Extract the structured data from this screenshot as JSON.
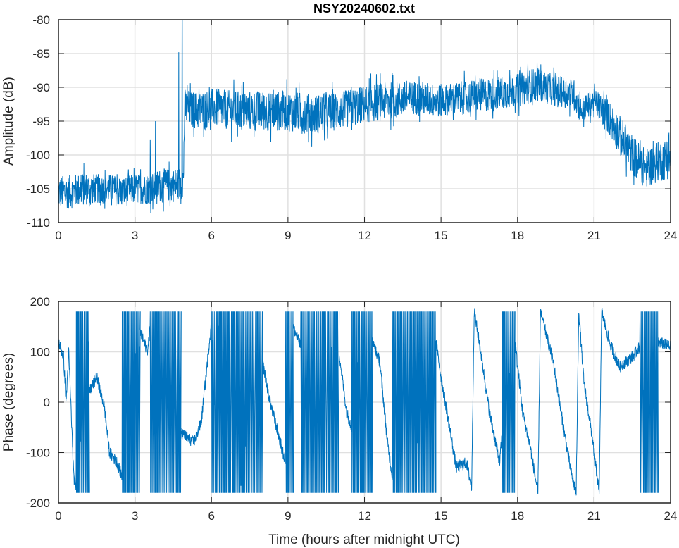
{
  "chart_data": [
    {
      "type": "line",
      "title": "NSY20240602.txt",
      "xlabel": "",
      "ylabel": "Amplitude (dB)",
      "xlim": [
        0,
        24
      ],
      "ylim": [
        -110,
        -80
      ],
      "xticks": [
        "0",
        "3",
        "6",
        "9",
        "12",
        "15",
        "18",
        "21",
        "24"
      ],
      "yticks": [
        "-110",
        "-105",
        "-100",
        "-95",
        "-90",
        "-85",
        "-80"
      ],
      "grid": true,
      "color": "#0072BD",
      "series": [
        {
          "name": "Amplitude",
          "points_t_mean_spread": [
            [
              0,
              -105.5,
              2.5
            ],
            [
              0.5,
              -105.5,
              2.5
            ],
            [
              1,
              -105,
              2.5
            ],
            [
              1.5,
              -105,
              2.2
            ],
            [
              2,
              -105,
              2.2
            ],
            [
              2.5,
              -105.5,
              2.3
            ],
            [
              3,
              -105,
              2.3
            ],
            [
              3.5,
              -105,
              2.3
            ],
            [
              4,
              -104.5,
              2.5
            ],
            [
              4.5,
              -104.5,
              2.5
            ],
            [
              4.9,
              -104,
              2.5
            ],
            [
              4.95,
              -93,
              2.8
            ],
            [
              5.5,
              -93.5,
              2.8
            ],
            [
              6,
              -93,
              2.8
            ],
            [
              7,
              -93.5,
              3
            ],
            [
              8,
              -93.5,
              3
            ],
            [
              9,
              -93.5,
              3
            ],
            [
              10,
              -94,
              3
            ],
            [
              11,
              -93.5,
              2.8
            ],
            [
              12,
              -92.5,
              2.8
            ],
            [
              13,
              -92,
              2.8
            ],
            [
              14,
              -91.5,
              2.5
            ],
            [
              15,
              -92,
              2.5
            ],
            [
              16,
              -91.5,
              2.5
            ],
            [
              17,
              -91,
              2.5
            ],
            [
              18,
              -90.5,
              2.5
            ],
            [
              18.7,
              -89.5,
              2.5
            ],
            [
              19.5,
              -90.5,
              2.3
            ],
            [
              20.2,
              -91,
              2.3
            ],
            [
              20.5,
              -93.5,
              2
            ],
            [
              21,
              -92,
              1.8
            ],
            [
              21.5,
              -94,
              2.5
            ],
            [
              22,
              -97,
              3
            ],
            [
              22.5,
              -100,
              3
            ],
            [
              23,
              -102,
              3
            ],
            [
              23.5,
              -101,
              3
            ],
            [
              24,
              -100.5,
              3
            ]
          ],
          "spikes": [
            [
              3.8,
              -95
            ],
            [
              3.6,
              -97.8
            ],
            [
              4.72,
              -84.8
            ],
            [
              4.85,
              -80
            ]
          ]
        }
      ]
    },
    {
      "type": "line",
      "title": "",
      "xlabel": "Time (hours after midnight UTC)",
      "ylabel": "Phase (degrees)",
      "xlim": [
        0,
        24
      ],
      "ylim": [
        -200,
        200
      ],
      "xticks": [
        "0",
        "3",
        "6",
        "9",
        "12",
        "15",
        "18",
        "21",
        "24"
      ],
      "yticks": [
        "-200",
        "-100",
        "0",
        "100",
        "200"
      ],
      "grid": true,
      "color": "#0072BD",
      "series": [
        {
          "name": "Phase",
          "points": [
            [
              0,
              120
            ],
            [
              0.2,
              90
            ],
            [
              0.3,
              0
            ],
            [
              0.4,
              100
            ],
            [
              0.5,
              -20
            ],
            [
              0.6,
              -150
            ],
            [
              0.7,
              -170
            ],
            [
              1.2,
              20
            ],
            [
              1.5,
              50
            ],
            [
              1.8,
              -10
            ],
            [
              2.0,
              -100
            ],
            [
              2.3,
              -120
            ],
            [
              2.5,
              -150
            ],
            [
              3.2,
              140
            ],
            [
              3.5,
              100
            ],
            [
              3.6,
              150
            ],
            [
              4.8,
              -60
            ],
            [
              5.3,
              -80
            ],
            [
              5.6,
              -40
            ],
            [
              5.8,
              60
            ],
            [
              6.0,
              160
            ],
            [
              8.0,
              80
            ],
            [
              8.3,
              0
            ],
            [
              8.7,
              -80
            ],
            [
              8.9,
              -120
            ],
            [
              9.2,
              150
            ],
            [
              9.5,
              110
            ],
            [
              11.0,
              100
            ],
            [
              11.3,
              -20
            ],
            [
              11.5,
              -50
            ],
            [
              12.3,
              120
            ],
            [
              12.6,
              80
            ],
            [
              12.9,
              -80
            ],
            [
              13.1,
              -150
            ],
            [
              14.8,
              120
            ],
            [
              15.0,
              50
            ],
            [
              15.3,
              -40
            ],
            [
              15.6,
              -130
            ],
            [
              16.0,
              -120
            ],
            [
              16.2,
              -170
            ],
            [
              16.3,
              180
            ],
            [
              16.5,
              120
            ],
            [
              16.9,
              -20
            ],
            [
              17.3,
              -120
            ],
            [
              17.4,
              -60
            ],
            [
              17.9,
              120
            ],
            [
              18.2,
              -20
            ],
            [
              18.5,
              -90
            ],
            [
              18.8,
              -180
            ],
            [
              18.9,
              180
            ],
            [
              19.4,
              80
            ],
            [
              19.8,
              -50
            ],
            [
              20.1,
              -140
            ],
            [
              20.3,
              -180
            ],
            [
              20.4,
              180
            ],
            [
              20.6,
              40
            ],
            [
              20.9,
              -60
            ],
            [
              21.2,
              -180
            ],
            [
              21.3,
              180
            ],
            [
              21.6,
              120
            ],
            [
              22.0,
              70
            ],
            [
              22.5,
              90
            ],
            [
              22.8,
              110
            ],
            [
              23.5,
              120
            ],
            [
              24,
              110
            ]
          ],
          "wrap_bands": [
            [
              0.7,
              1.2
            ],
            [
              2.6,
              3.2
            ],
            [
              3.6,
              4.8
            ],
            [
              6.0,
              8.0
            ],
            [
              8.9,
              9.2
            ],
            [
              9.6,
              11.0
            ],
            [
              11.5,
              12.3
            ],
            [
              13.1,
              14.8
            ],
            [
              15.1,
              15.6
            ],
            [
              17.5,
              17.9
            ],
            [
              22.8,
              23.5
            ]
          ]
        }
      ]
    }
  ]
}
